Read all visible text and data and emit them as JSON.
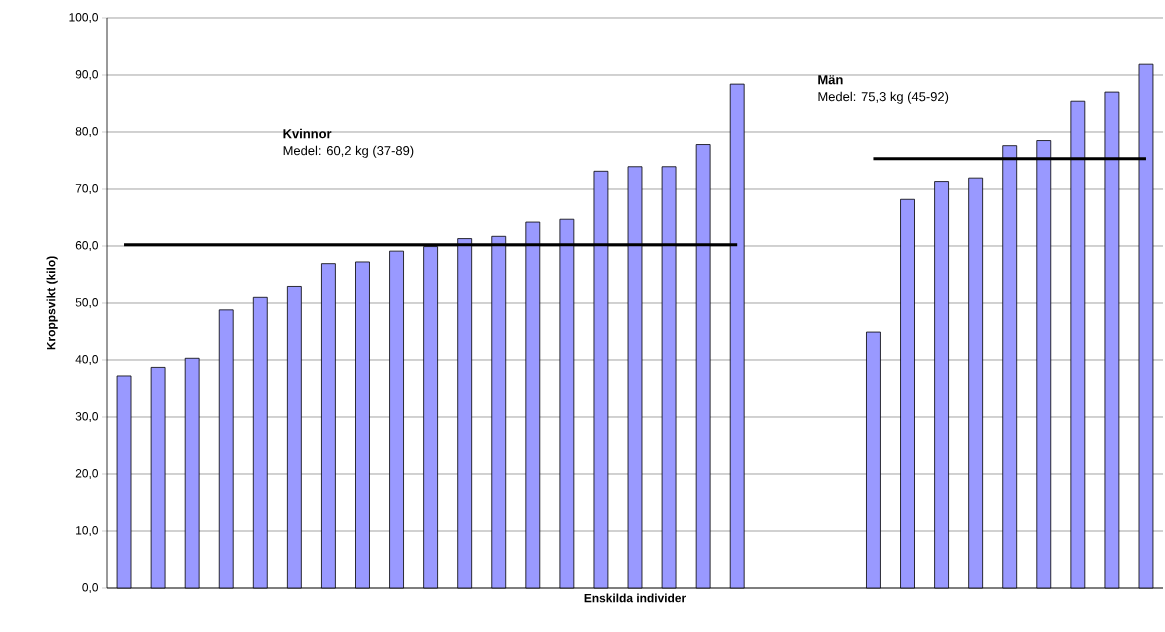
{
  "chart_data": {
    "type": "bar",
    "xlabel": "Enskilda individer",
    "ylabel": "Kroppsvikt (kilo)",
    "categories": [
      null,
      null,
      null,
      null,
      null,
      null,
      null,
      null,
      null,
      null,
      null,
      null,
      null,
      null,
      null,
      null,
      null,
      null,
      null,
      null,
      null,
      null,
      null,
      null,
      null,
      null,
      null,
      null,
      null,
      null,
      null
    ],
    "series": [
      {
        "color": "#9999ff",
        "values": [
          37.2,
          38.7,
          40.3,
          48.8,
          51.0,
          52.9,
          56.9,
          57.2,
          59.1,
          59.9,
          61.3,
          61.7,
          64.2,
          64.7,
          73.1,
          73.9,
          73.9,
          77.8,
          88.4,
          null,
          null,
          null,
          44.9,
          68.2,
          71.3,
          71.9,
          77.6,
          78.5,
          85.4,
          87.0,
          91.9
        ]
      },
      {
        "type": "line",
        "color": "#000000",
        "values": [
          60.2,
          60.2,
          60.2,
          60.2,
          60.2,
          60.2,
          60.2,
          60.2,
          60.2,
          60.2,
          60.2,
          60.2,
          60.2,
          60.2,
          60.2,
          60.2,
          60.2,
          60.2,
          60.2,
          null,
          null,
          null,
          null,
          null,
          null,
          null,
          null,
          null,
          null,
          null,
          null
        ]
      },
      {
        "type": "line",
        "color": "#000000",
        "values": [
          null,
          null,
          null,
          null,
          null,
          null,
          null,
          null,
          null,
          null,
          null,
          null,
          null,
          null,
          null,
          null,
          null,
          null,
          null,
          null,
          null,
          null,
          75.3,
          75.3,
          75.3,
          75.3,
          75.3,
          75.3,
          75.3,
          75.3,
          75.3
        ]
      }
    ],
    "annotations": [
      "Kvinnor",
      "Medel: 60,2 kg (37-89)",
      "Män",
      "Medel: 75,3 kg (45-92)"
    ],
    "ylim": [
      0,
      100
    ],
    "yticks": [
      {
        "value": 0,
        "label": "0,0"
      },
      {
        "value": 10,
        "label": "10,0"
      },
      {
        "value": 20,
        "label": "20,0"
      },
      {
        "value": 30,
        "label": "30,0"
      },
      {
        "value": 40,
        "label": "40,0"
      },
      {
        "value": 50,
        "label": "50,0"
      },
      {
        "value": 60,
        "label": "60,0"
      },
      {
        "value": 70,
        "label": "70,0"
      },
      {
        "value": 80,
        "label": "80,0"
      },
      {
        "value": 90,
        "label": "90,0"
      },
      {
        "value": 100,
        "label": "100,0"
      }
    ],
    "tick_labels": "y",
    "grid": "y",
    "marker": "none"
  }
}
